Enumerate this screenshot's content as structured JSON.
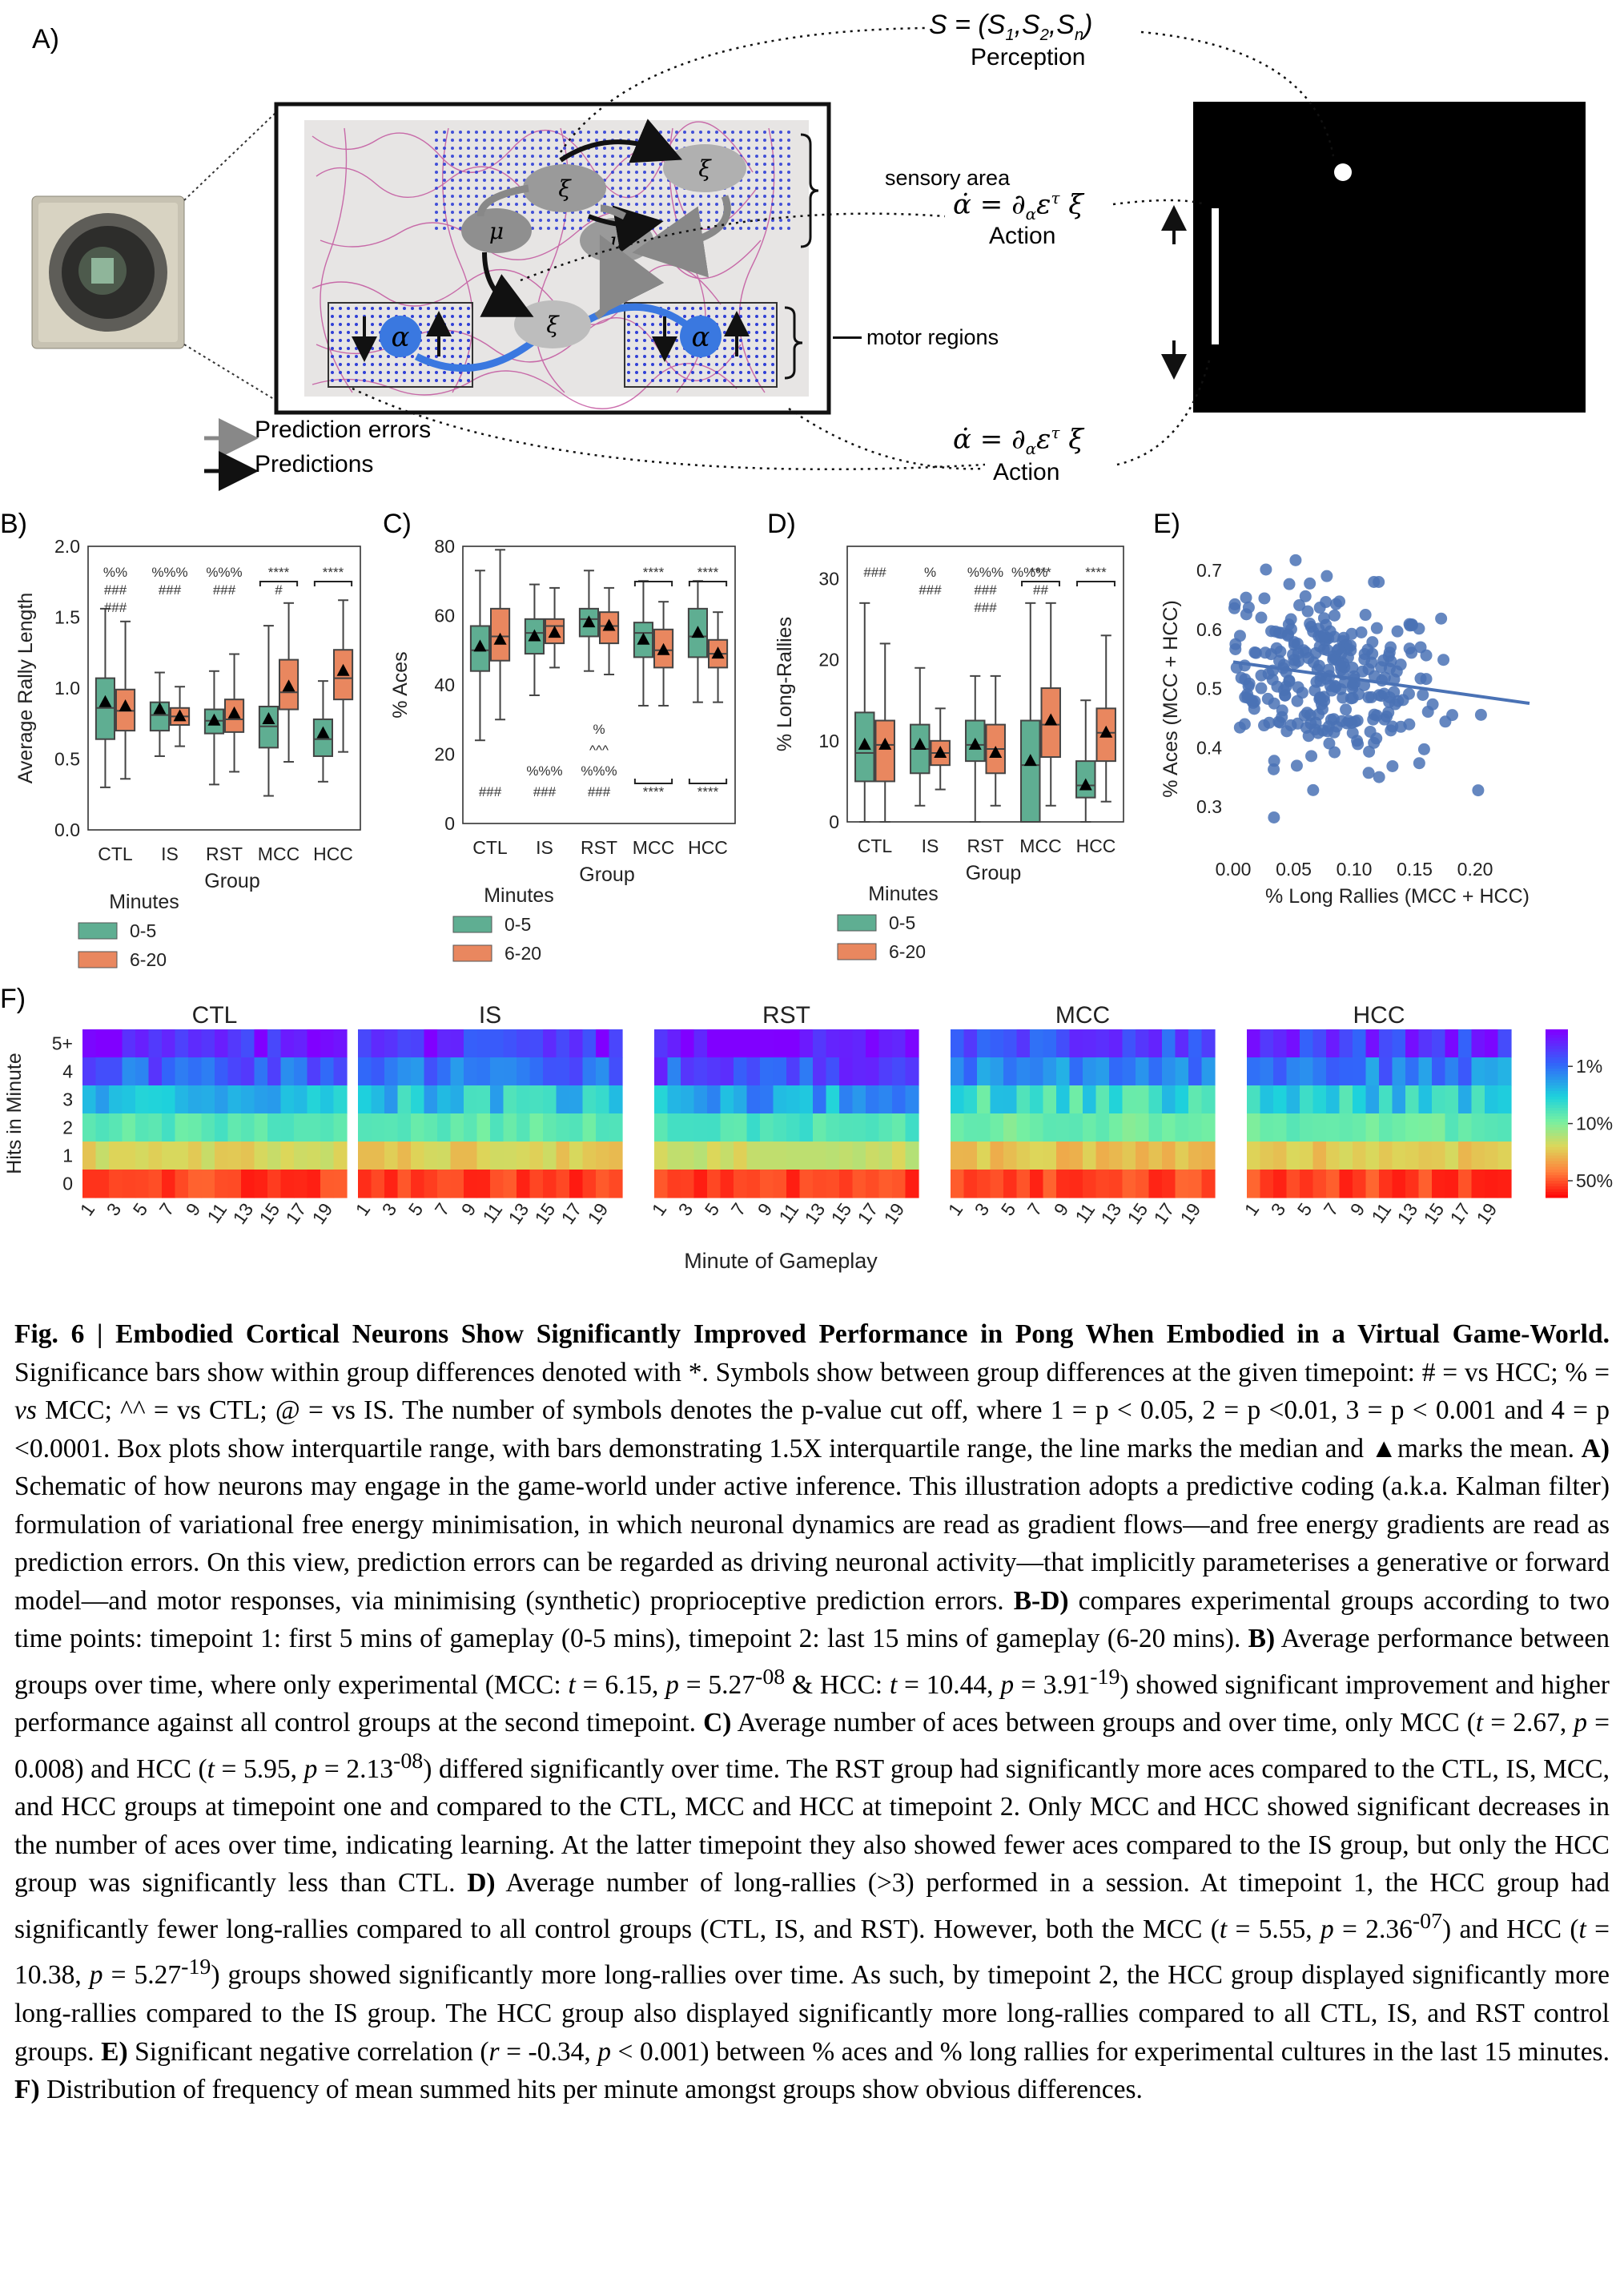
{
  "panelA": {
    "letter": "A)",
    "perception_label": "Perception",
    "s_eq": "S = (S",
    "s_sub1": "1",
    "s_sep1": ",S",
    "s_sub2": "2",
    "s_sep2": ",S",
    "s_subn": "n",
    "s_close": ")",
    "action_label_1": "Action",
    "action_label_2": "Action",
    "sensory_area": "sensory area",
    "motor_regions": "motor regions",
    "legend_errors": "Prediction errors",
    "legend_predictions": "Predictions",
    "colors": {
      "screen": "#000000",
      "arrow_grey": "#888888",
      "blue_cell": "#3a78e0",
      "dots": "#2f3fd6",
      "neurons": "#c04c9a"
    }
  },
  "panelB": {
    "letter": "B)",
    "chart_data": {
      "type": "box",
      "ylabel": "Average Rally Length",
      "xlabel": "Group",
      "categories": [
        "CTL",
        "IS",
        "RST",
        "MCC",
        "HCC"
      ],
      "ylim": [
        0,
        2.0
      ],
      "yticks": [
        "0.0",
        "0.5",
        "1.0",
        "1.5",
        "2.0"
      ],
      "legend_title": "Minutes",
      "series": [
        {
          "name": "0-5",
          "color": "#5fae92",
          "boxes": [
            {
              "whislo": 0.3,
              "q1": 0.64,
              "med": 0.86,
              "q3": 1.07,
              "whishi": 1.56,
              "mean": 0.9
            },
            {
              "whislo": 0.52,
              "q1": 0.7,
              "med": 0.81,
              "q3": 0.9,
              "whishi": 1.11,
              "mean": 0.85
            },
            {
              "whislo": 0.32,
              "q1": 0.68,
              "med": 0.77,
              "q3": 0.85,
              "whishi": 1.12,
              "mean": 0.77
            },
            {
              "whislo": 0.24,
              "q1": 0.58,
              "med": 0.73,
              "q3": 0.87,
              "whishi": 1.44,
              "mean": 0.78
            },
            {
              "whislo": 0.34,
              "q1": 0.52,
              "med": 0.64,
              "q3": 0.78,
              "whishi": 1.05,
              "mean": 0.68
            }
          ]
        },
        {
          "name": "6-20",
          "color": "#e9875f",
          "boxes": [
            {
              "whislo": 0.36,
              "q1": 0.7,
              "med": 0.84,
              "q3": 0.99,
              "whishi": 1.47,
              "mean": 0.87
            },
            {
              "whislo": 0.59,
              "q1": 0.74,
              "med": 0.8,
              "q3": 0.86,
              "whishi": 1.01,
              "mean": 0.8
            },
            {
              "whislo": 0.41,
              "q1": 0.69,
              "med": 0.78,
              "q3": 0.92,
              "whishi": 1.24,
              "mean": 0.82
            },
            {
              "whislo": 0.48,
              "q1": 0.85,
              "med": 0.97,
              "q3": 1.2,
              "whishi": 1.6,
              "mean": 1.01
            },
            {
              "whislo": 0.55,
              "q1": 0.92,
              "med": 1.07,
              "q3": 1.27,
              "whishi": 1.62,
              "mean": 1.12
            }
          ]
        }
      ],
      "sig_top": [
        {
          "cat": 0,
          "lines": [
            "%%",
            "###",
            "###"
          ]
        },
        {
          "cat": 1,
          "lines": [
            "%%%",
            "###"
          ]
        },
        {
          "cat": 2,
          "lines": [
            "%%%",
            "###"
          ]
        },
        {
          "cat": 3,
          "lines": [
            "****",
            "#"
          ],
          "bracket": true
        },
        {
          "cat": 4,
          "lines": [
            "****"
          ],
          "bracket": true
        }
      ],
      "sig_bottom": []
    }
  },
  "panelC": {
    "letter": "C)",
    "chart_data": {
      "type": "box",
      "ylabel": "% Aces",
      "xlabel": "Group",
      "categories": [
        "CTL",
        "IS",
        "RST",
        "MCC",
        "HCC"
      ],
      "ylim": [
        0,
        80
      ],
      "yticks": [
        "0",
        "20",
        "40",
        "60",
        "80"
      ],
      "legend_title": "Minutes",
      "series": [
        {
          "name": "0-5",
          "color": "#5fae92",
          "boxes": [
            {
              "whislo": 24,
              "q1": 44,
              "med": 50,
              "q3": 57,
              "whishi": 73,
              "mean": 51
            },
            {
              "whislo": 37,
              "q1": 49,
              "med": 55,
              "q3": 59,
              "whishi": 69,
              "mean": 54
            },
            {
              "whislo": 44,
              "q1": 54,
              "med": 59,
              "q3": 62,
              "whishi": 73,
              "mean": 58
            },
            {
              "whislo": 34,
              "q1": 48,
              "med": 55,
              "q3": 58,
              "whishi": 70,
              "mean": 53
            },
            {
              "whislo": 35,
              "q1": 48,
              "med": 54,
              "q3": 62,
              "whishi": 70,
              "mean": 55
            }
          ]
        },
        {
          "name": "6-20",
          "color": "#e9875f",
          "boxes": [
            {
              "whislo": 30,
              "q1": 47,
              "med": 54,
              "q3": 62,
              "whishi": 79,
              "mean": 53
            },
            {
              "whislo": 45,
              "q1": 52,
              "med": 57,
              "q3": 59,
              "whishi": 68,
              "mean": 55
            },
            {
              "whislo": 43,
              "q1": 52,
              "med": 57,
              "q3": 61,
              "whishi": 68,
              "mean": 57
            },
            {
              "whislo": 34,
              "q1": 45,
              "med": 50,
              "q3": 56,
              "whishi": 64,
              "mean": 50
            },
            {
              "whislo": 35,
              "q1": 45,
              "med": 49,
              "q3": 53,
              "whishi": 61,
              "mean": 49
            }
          ]
        }
      ],
      "sig_top": [
        {
          "cat": 3,
          "lines": [
            "****"
          ],
          "bracket": true
        },
        {
          "cat": 4,
          "lines": [
            "****"
          ],
          "bracket": true
        }
      ],
      "sig_bottom": [
        {
          "cat": 0,
          "lines": [
            "###"
          ]
        },
        {
          "cat": 1,
          "lines": [
            "%%%",
            "###"
          ]
        },
        {
          "cat": 2,
          "lines": [
            "%",
            "^^^",
            "%%%",
            "###"
          ]
        },
        {
          "cat": 3,
          "lines": [
            "****"
          ],
          "bracket": true
        },
        {
          "cat": 4,
          "lines": [
            "****"
          ],
          "bracket": true
        }
      ]
    }
  },
  "panelD": {
    "letter": "D)",
    "chart_data": {
      "type": "box",
      "ylabel": "% Long-Rallies",
      "xlabel": "Group",
      "categories": [
        "CTL",
        "IS",
        "RST",
        "MCC",
        "HCC"
      ],
      "ylim": [
        0,
        34
      ],
      "yticks": [
        "0",
        "10",
        "20",
        "30"
      ],
      "legend_title": "Minutes",
      "series": [
        {
          "name": "0-5",
          "color": "#5fae92",
          "boxes": [
            {
              "whislo": 0,
              "q1": 5,
              "med": 8.5,
              "q3": 13.5,
              "whishi": 27,
              "mean": 9.5
            },
            {
              "whislo": 2,
              "q1": 6,
              "med": 9,
              "q3": 12,
              "whishi": 19,
              "mean": 9.5
            },
            {
              "whislo": 0,
              "q1": 7.5,
              "med": 9.5,
              "q3": 12.5,
              "whishi": 18,
              "mean": 9.5
            },
            {
              "whislo": 0,
              "q1": 0,
              "med": 7,
              "q3": 12.5,
              "whishi": 27,
              "mean": 7.5
            },
            {
              "whislo": 0,
              "q1": 3,
              "med": 4.5,
              "q3": 7.5,
              "whishi": 15,
              "mean": 4.5
            }
          ]
        },
        {
          "name": "6-20",
          "color": "#e9875f",
          "boxes": [
            {
              "whislo": 0,
              "q1": 5,
              "med": 9.5,
              "q3": 12.5,
              "whishi": 22,
              "mean": 9.5
            },
            {
              "whislo": 4,
              "q1": 7,
              "med": 8.5,
              "q3": 10,
              "whishi": 14,
              "mean": 8.5
            },
            {
              "whislo": 2,
              "q1": 6,
              "med": 9,
              "q3": 12,
              "whishi": 18,
              "mean": 8.5
            },
            {
              "whislo": 2,
              "q1": 8,
              "med": 12,
              "q3": 16.5,
              "whishi": 27,
              "mean": 12.5
            },
            {
              "whislo": 2.5,
              "q1": 7.5,
              "med": 11,
              "q3": 14,
              "whishi": 23,
              "mean": 11
            }
          ]
        }
      ],
      "sig_top": [
        {
          "cat": 0,
          "lines": [
            "###"
          ]
        },
        {
          "cat": 1,
          "lines": [
            "%",
            "###"
          ]
        },
        {
          "cat": 2,
          "lines": [
            "%%%",
            "###",
            "###"
          ]
        },
        {
          "cat": 2.8,
          "lines": [
            "%%%"
          ]
        },
        {
          "cat": 3,
          "lines": [
            "****",
            "##"
          ],
          "bracket": true
        },
        {
          "cat": 4,
          "lines": [
            "****"
          ],
          "bracket": true
        }
      ],
      "sig_bottom": []
    }
  },
  "panelE": {
    "letter": "E)",
    "chart_data": {
      "type": "scatter",
      "xlabel": "% Long Rallies (MCC + HCC)",
      "ylabel": "% Aces (MCC + HCC)",
      "xlim": [
        0.0,
        0.245
      ],
      "ylim": [
        0.235,
        0.73
      ],
      "xticks": [
        "0.00",
        "0.05",
        "0.10",
        "0.15",
        "0.20"
      ],
      "yticks": [
        "0.3",
        "0.4",
        "0.5",
        "0.6",
        "0.7"
      ],
      "regression": {
        "x0": 0.0,
        "y0": 0.545,
        "x1": 0.245,
        "y1": 0.475
      },
      "color": "#4a72b5",
      "n_points": 280,
      "x_mean": 0.08,
      "x_sd": 0.045,
      "y_mean": 0.52,
      "y_sd": 0.075
    }
  },
  "panelF": {
    "letter": "F)",
    "chart_data": {
      "type": "heatmap",
      "ylabel": "Hits in Minute",
      "xlabel": "Minute of Gameplay",
      "yticks": [
        "5+",
        "4",
        "3",
        "2",
        "1",
        "0"
      ],
      "xticks": [
        "1",
        "3",
        "5",
        "7",
        "9",
        "11",
        "13",
        "15",
        "17",
        "19"
      ],
      "groups": [
        "CTL",
        "IS",
        "RST",
        "MCC",
        "HCC"
      ],
      "colorbar_ticks": [
        "1%",
        "10%",
        "50%"
      ],
      "colormap": "rainbow"
    }
  },
  "caption": {
    "fig_title": "Fig. 6 | Embodied Cortical Neurons Show Significantly Improved Performance in Pong When Embodied in a Virtual Game-World.",
    "intro": " Significance bars show within group differences denoted with *. Symbols show between group differences at the given timepoint: # = vs HCC;  % = ",
    "intro_vs": "vs",
    "intro_2": " MCC; ^^ = vs CTL; @ = vs IS. The number of symbols denotes the p-value cut off, where 1 = p < 0.05, 2 = p <0.01, 3 = p < 0.001 and 4 = p <0.0001. Box plots show interquartile range, with bars demonstrating 1.5X interquartile range, the line marks the median and ▲marks the mean. ",
    "a_label": "A)",
    "a_text": " Schematic of how neurons may engage in the game-world under active inference. This illustration adopts a predictive coding (a.k.a. Kalman filter) formulation of variational free energy minimisation, in which neuronal dynamics are read as gradient flows—and free energy gradients are read as prediction errors. On this view, prediction errors can be regarded as driving neuronal activity—that implicitly parameterises a generative or forward model—and motor responses, via minimising (synthetic) proprioceptive prediction errors. ",
    "bd_label": "B-D)",
    "bd_text": " compares experimental groups according to two time points: timepoint 1: first 5 mins of gameplay (0-5 mins), timepoint 2: last 15 mins of gameplay (6-20 mins). ",
    "b_label": "B)",
    "b_text_1": " Average performance between groups over time, where only experimental (MCC: ",
    "b_t1": "t",
    "b_text_2": " = 6.15, ",
    "b_p1": "p",
    "b_text_3": " = 5.27",
    "b_sup1": "-08",
    "b_text_4": " & HCC: ",
    "b_t2": "t",
    "b_text_5": " = 10.44, ",
    "b_p2": "p",
    "b_text_6": " = 3.91",
    "b_sup2": "-19",
    "b_text_7": ") showed significant improvement and higher performance against all control groups at the second timepoint. ",
    "c_label": "C)",
    "c_text_1": " Average number of aces between groups and over time, only MCC (",
    "c_t1": "t",
    "c_text_2": " = 2.67, ",
    "c_p1": "p",
    "c_text_3": " = 0.008) and HCC (",
    "c_t2": "t",
    "c_text_4": " = 5.95, ",
    "c_p2": "p",
    "c_text_5": " = 2.13",
    "c_sup": "-08",
    "c_text_6": ") differed significantly over time. The RST group had significantly more aces compared to the CTL, IS, MCC, and HCC groups at timepoint one and compared to the CTL, MCC and HCC at timepoint 2. Only MCC and HCC showed significant decreases in the number of aces over time, indicating learning. At the latter timepoint they also showed fewer aces compared to the IS group, but only the HCC group was significantly less than CTL. ",
    "d_label": "D)",
    "d_text_1": " Average number of long-rallies (>3) performed in a session. At timepoint 1, the HCC group had significantly fewer long-rallies compared to all control groups (CTL, IS, and RST). However, both the MCC (",
    "d_t1": "t",
    "d_text_2": " = 5.55, ",
    "d_p1": "p",
    "d_text_3": " = 2.36",
    "d_sup1": "-07",
    "d_text_4": ") and HCC (",
    "d_t2": "t",
    "d_text_5": " = 10.38, ",
    "d_p2": "p",
    "d_text_6": " = 5.27",
    "d_sup2": "-19",
    "d_text_7": ") groups showed significantly more long-rallies over time. As such, by timepoint 2, the HCC group displayed significantly more long-rallies compared to the IS group. The HCC group also displayed significantly more long-rallies compared to all CTL, IS, and RST control groups. ",
    "e_label": "E)",
    "e_text_1": " Significant negative correlation (",
    "e_r": "r",
    "e_text_2": " = -0.34, ",
    "e_p": "p",
    "e_text_3": " < 0.001) between % aces and % long rallies for experimental cultures in the last 15 minutes. ",
    "f_label": "F)",
    "f_text": " Distribution of frequency of mean summed hits per minute amongst groups show obvious differences."
  }
}
